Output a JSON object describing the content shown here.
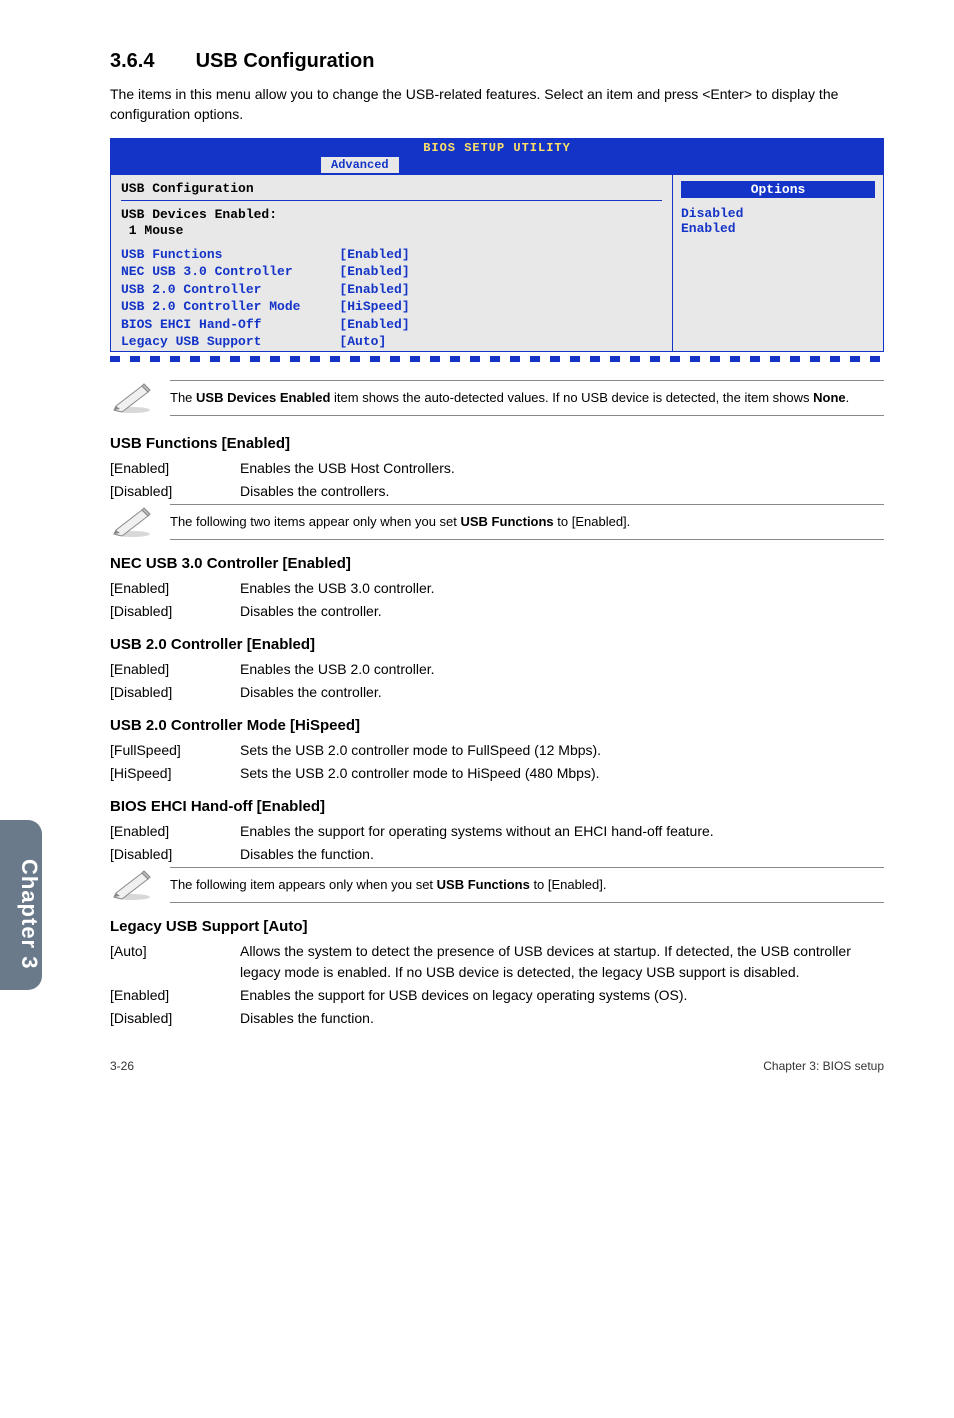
{
  "section": {
    "number": "3.6.4",
    "title": "USB Configuration"
  },
  "intro": "The items in this menu allow you to change the USB-related features. Select an item and press <Enter> to display the configuration options.",
  "bios": {
    "title": "BIOS SETUP UTILITY",
    "active_tab": "Advanced",
    "left_heading": "USB Configuration",
    "devices_label": "USB Devices Enabled:",
    "devices_value": " 1 Mouse",
    "rows": [
      {
        "label": "USB Functions",
        "value": "[Enabled]"
      },
      {
        "label": "NEC USB 3.0 Controller",
        "value": "[Enabled]"
      },
      {
        "label": "USB 2.0 Controller",
        "value": "[Enabled]"
      },
      {
        "label": "USB 2.0 Controller Mode",
        "value": "[HiSpeed]"
      },
      {
        "label": "BIOS EHCI Hand-Off",
        "value": "[Enabled]"
      },
      {
        "label": "Legacy USB Support",
        "value": "[Auto]"
      }
    ],
    "options_title": "Options",
    "options": [
      "Disabled",
      "Enabled"
    ],
    "colors": {
      "frame": "#1434c8",
      "panel_bg": "#e8e8e8",
      "title_text": "#ffe066"
    }
  },
  "note1": {
    "pre": "The ",
    "bold": "USB Devices Enabled",
    "mid": " item shows the auto-detected values. If no USB device is detected, the item shows ",
    "bold2": "None",
    "post": "."
  },
  "subsections": [
    {
      "heading": "USB Functions [Enabled]",
      "rows": [
        {
          "k": "[Enabled]",
          "v": "Enables the USB Host Controllers."
        },
        {
          "k": "[Disabled]",
          "v": "Disables the controllers."
        }
      ],
      "note": {
        "pre": "The following two items appear only when you set ",
        "bold": "USB Functions",
        "post": " to [Enabled]."
      }
    },
    {
      "heading": "NEC USB 3.0 Controller [Enabled]",
      "rows": [
        {
          "k": "[Enabled]",
          "v": "Enables the USB 3.0 controller."
        },
        {
          "k": "[Disabled]",
          "v": "Disables the controller."
        }
      ]
    },
    {
      "heading": "USB 2.0 Controller [Enabled]",
      "rows": [
        {
          "k": "[Enabled]",
          "v": "Enables the USB 2.0 controller."
        },
        {
          "k": "[Disabled]",
          "v": "Disables the controller."
        }
      ]
    },
    {
      "heading": "USB 2.0 Controller Mode [HiSpeed]",
      "rows": [
        {
          "k": "[FullSpeed]",
          "v": "Sets the USB 2.0 controller mode to FullSpeed (12 Mbps)."
        },
        {
          "k": "[HiSpeed]",
          "v": "Sets the USB 2.0 controller mode to HiSpeed (480 Mbps)."
        }
      ]
    },
    {
      "heading": "BIOS EHCI Hand-off [Enabled]",
      "rows": [
        {
          "k": "[Enabled]",
          "v": "Enables the support for operating systems without an EHCI hand-off feature."
        },
        {
          "k": "[Disabled]",
          "v": "Disables the function."
        }
      ],
      "note": {
        "pre": "The following item appears only when you set ",
        "bold": "USB Functions",
        "post": " to [Enabled]."
      }
    },
    {
      "heading": "Legacy USB Support [Auto]",
      "rows": [
        {
          "k": "[Auto]",
          "v": "Allows the system to detect the presence of USB devices at startup. If detected, the USB controller legacy mode is enabled. If no USB device is detected, the legacy USB support is disabled."
        },
        {
          "k": "[Enabled]",
          "v": "Enables the support for USB devices on legacy operating systems (OS)."
        },
        {
          "k": "[Disabled]",
          "v": "Disables the function."
        }
      ]
    }
  ],
  "sidetab": "Chapter 3",
  "footer": {
    "left": "3-26",
    "right": "Chapter 3: BIOS setup"
  }
}
